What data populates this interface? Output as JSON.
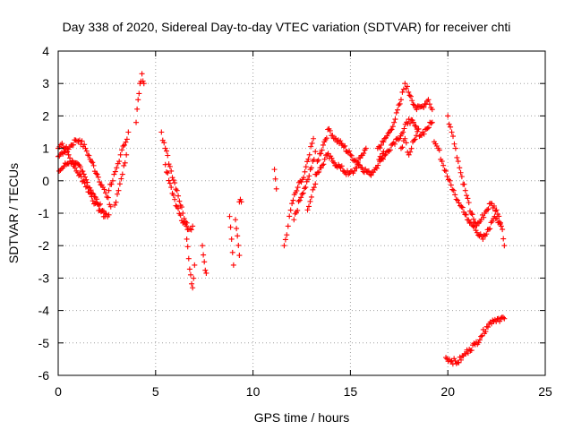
{
  "chart_data": {
    "type": "scatter",
    "title": "Day 338 of 2020, Sidereal Day-to-day VTEC variation (SDTVAR) for receiver chti",
    "xlabel": "GPS time / hours",
    "ylabel": "SDTVAR / TECUs",
    "xlim": [
      0,
      25
    ],
    "ylim": [
      -6,
      4
    ],
    "xticks": [
      0,
      5,
      10,
      15,
      20,
      25
    ],
    "yticks": [
      -6,
      -5,
      -4,
      -3,
      -2,
      -1,
      0,
      1,
      2,
      3,
      4
    ],
    "grid": true,
    "marker": "+",
    "color": "#ff0000",
    "series": [
      {
        "name": "SDTVAR",
        "tracks": [
          {
            "x": [
              0.0,
              0.2,
              0.4,
              0.6,
              0.8,
              1.0,
              1.3,
              1.6,
              1.9,
              2.2,
              2.4
            ],
            "y": [
              1.0,
              1.15,
              1.0,
              0.7,
              0.45,
              0.25,
              0.0,
              -0.35,
              -0.7,
              -0.95,
              -1.1
            ]
          },
          {
            "x": [
              0.0,
              0.3,
              0.6,
              0.9,
              1.1,
              1.4,
              1.7,
              2.0,
              2.3,
              2.5,
              2.7
            ],
            "y": [
              0.75,
              0.9,
              1.05,
              1.25,
              1.25,
              1.0,
              0.6,
              0.2,
              -0.2,
              -0.5,
              -0.8
            ]
          },
          {
            "x": [
              0.05,
              0.3,
              0.6,
              0.9,
              1.2,
              1.5,
              1.8,
              2.1,
              2.4,
              2.6
            ],
            "y": [
              0.3,
              0.45,
              0.6,
              0.55,
              0.3,
              -0.05,
              -0.4,
              -0.75,
              -1.0,
              -1.05
            ]
          },
          {
            "x": [
              2.6,
              2.8,
              3.0,
              3.2,
              3.4,
              3.6
            ],
            "y": [
              -0.3,
              0.0,
              0.4,
              0.8,
              1.1,
              1.5
            ]
          },
          {
            "x": [
              2.9,
              3.1,
              3.3,
              3.5
            ],
            "y": [
              -0.75,
              -0.3,
              0.2,
              0.8
            ]
          },
          {
            "x": [
              4.0,
              4.1,
              4.2,
              4.3,
              4.4
            ],
            "y": [
              1.8,
              2.5,
              3.0,
              3.3,
              3.0
            ]
          },
          {
            "x": [
              5.3,
              5.5,
              5.8,
              6.1,
              6.4,
              6.6
            ],
            "y": [
              1.5,
              1.0,
              0.3,
              -0.3,
              -1.0,
              -1.3
            ]
          },
          {
            "x": [
              5.5,
              5.8,
              6.1,
              6.4,
              6.7,
              6.9
            ],
            "y": [
              0.5,
              -0.2,
              -0.8,
              -1.3,
              -1.5,
              -1.4
            ]
          },
          {
            "x": [
              6.6,
              6.7,
              6.8,
              6.9,
              7.0
            ],
            "y": [
              -1.8,
              -2.4,
              -2.9,
              -3.3,
              -2.6
            ]
          },
          {
            "x": [
              7.4,
              7.5,
              7.6
            ],
            "y": [
              -2.0,
              -2.5,
              -2.85
            ]
          },
          {
            "x": [
              8.8,
              8.9,
              9.0
            ],
            "y": [
              -1.1,
              -1.8,
              -2.6
            ]
          },
          {
            "x": [
              9.1,
              9.2,
              9.3
            ],
            "y": [
              -1.2,
              -1.7,
              -2.3
            ]
          },
          {
            "x": [
              9.3,
              9.4
            ],
            "y": [
              -0.65,
              -0.65
            ]
          },
          {
            "x": [
              11.1,
              11.2
            ],
            "y": [
              0.35,
              -0.25
            ]
          },
          {
            "x": [
              11.6,
              11.8,
              12.0,
              12.3,
              12.6,
              12.9,
              13.1
            ],
            "y": [
              -2.0,
              -1.4,
              -0.7,
              -0.2,
              0.1,
              0.8,
              1.3
            ]
          },
          {
            "x": [
              12.1,
              12.4,
              12.7,
              13.0,
              13.2
            ],
            "y": [
              -1.2,
              -0.6,
              -0.2,
              0.4,
              0.9
            ]
          },
          {
            "x": [
              12.8,
              13.0,
              13.2
            ],
            "y": [
              -0.9,
              -0.5,
              -0.1
            ]
          },
          {
            "x": [
              13.3,
              13.6,
              13.9,
              14.2,
              14.6,
              15.0,
              15.3,
              15.6,
              16.0,
              16.3,
              16.7
            ],
            "y": [
              0.6,
              1.1,
              1.6,
              1.3,
              1.1,
              0.8,
              0.6,
              0.4,
              0.2,
              0.4,
              0.9
            ]
          },
          {
            "x": [
              13.2,
              13.5,
              13.8,
              14.1,
              14.5,
              14.9,
              15.2,
              15.5,
              15.8
            ],
            "y": [
              0.2,
              0.4,
              0.8,
              0.6,
              0.4,
              0.2,
              0.3,
              0.7,
              1.0
            ]
          },
          {
            "x": [
              16.4,
              16.7,
              17.0,
              17.3,
              17.6,
              17.8,
              18.1,
              18.4,
              18.7,
              19.0,
              19.2
            ],
            "y": [
              1.0,
              1.2,
              1.5,
              1.9,
              2.5,
              3.0,
              2.6,
              2.2,
              2.3,
              2.5,
              2.2
            ]
          },
          {
            "x": [
              16.5,
              16.8,
              17.1,
              17.4,
              17.7,
              18.0,
              18.3,
              18.6,
              18.9,
              19.2
            ],
            "y": [
              0.6,
              0.8,
              1.1,
              1.3,
              1.5,
              1.9,
              1.7,
              1.4,
              1.6,
              1.8
            ]
          },
          {
            "x": [
              17.6,
              17.8,
              18.0,
              18.2,
              18.5
            ],
            "y": [
              1.0,
              1.3,
              0.8,
              1.2,
              1.6
            ]
          },
          {
            "x": [
              19.3,
              19.5,
              19.7,
              19.9,
              20.1,
              20.3,
              20.5,
              20.7,
              21.0,
              21.3,
              21.6,
              21.9,
              22.2,
              22.5,
              22.8,
              22.9
            ],
            "y": [
              1.2,
              1.0,
              0.6,
              0.3,
              0.0,
              -0.3,
              -0.6,
              -0.8,
              -1.2,
              -1.4,
              -1.3,
              -1.0,
              -0.7,
              -0.9,
              -1.5,
              -2.0
            ]
          },
          {
            "x": [
              20.0,
              20.2,
              20.4,
              20.6,
              20.9,
              21.2,
              21.5,
              21.8,
              22.1,
              22.4,
              22.7
            ],
            "y": [
              2.0,
              1.5,
              1.0,
              0.4,
              -0.3,
              -1.0,
              -1.6,
              -1.8,
              -1.5,
              -1.1,
              -1.3
            ]
          },
          {
            "x": [
              19.9,
              20.2,
              20.5,
              20.8,
              21.1,
              21.4,
              21.7,
              22.0,
              22.3,
              22.6,
              22.9
            ],
            "y": [
              -5.45,
              -5.55,
              -5.6,
              -5.4,
              -5.2,
              -5.05,
              -4.8,
              -4.5,
              -4.3,
              -4.25,
              -4.25
            ]
          }
        ]
      }
    ]
  }
}
